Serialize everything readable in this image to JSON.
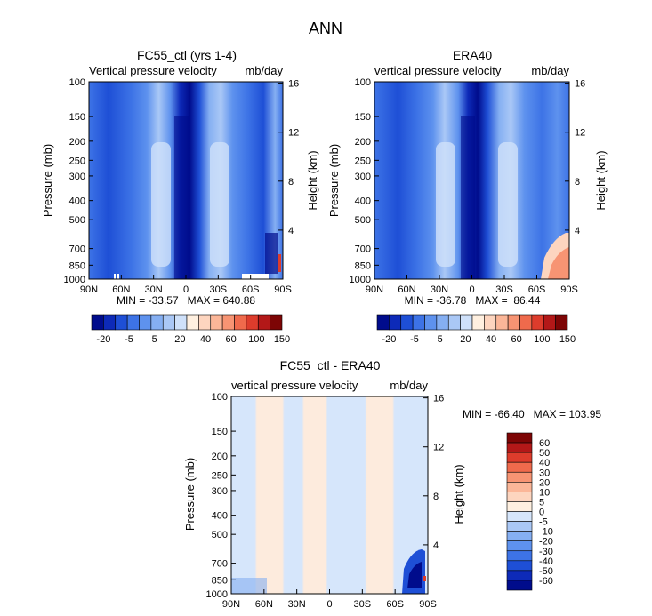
{
  "figure_title": "ANN",
  "chart_data": [
    {
      "type": "heatmap",
      "title": "FC55_ctl (yrs 1-4)",
      "subtitle_left": "Vertical pressure velocity",
      "subtitle_right": "mb/day",
      "ylabel": "Pressure (mb)",
      "y2label": "Height (km)",
      "x_ticks": [
        "90N",
        "60N",
        "30N",
        "0",
        "30S",
        "60S",
        "90S"
      ],
      "y_ticks": [
        "100",
        "150",
        "200",
        "250",
        "300",
        "400",
        "500",
        "700",
        "850",
        "1000"
      ],
      "y2_ticks": [
        "16",
        "12",
        "8",
        "4"
      ],
      "stats": "MIN = -33.57   MAX = 640.88",
      "colorbar_labels": [
        "-20",
        "-5",
        "5",
        "20",
        "40",
        "60",
        "100",
        "150"
      ],
      "colorbar_colors": [
        "#000c8c",
        "#0d2ab8",
        "#1e4fd6",
        "#3d73e6",
        "#5e92ee",
        "#85aff2",
        "#aac8f6",
        "#cfe1fa",
        "#fff0e0",
        "#fdd5bf",
        "#fbb698",
        "#f79473",
        "#ef6a4c",
        "#dd3c2c",
        "#b31818",
        "#7d0505"
      ]
    },
    {
      "type": "heatmap",
      "title": "ERA40",
      "subtitle_left": "vertical pressure velocity",
      "subtitle_right": "mb/day",
      "ylabel": "Pressure (mb)",
      "y2label": "Height (km)",
      "x_ticks": [
        "90N",
        "60N",
        "30N",
        "0",
        "30S",
        "60S",
        "90S"
      ],
      "y_ticks": [
        "100",
        "150",
        "200",
        "250",
        "300",
        "400",
        "500",
        "700",
        "850",
        "1000"
      ],
      "y2_ticks": [
        "16",
        "12",
        "8",
        "4"
      ],
      "stats": "MIN = -36.78   MAX =  86.44",
      "colorbar_labels": [
        "-20",
        "-5",
        "5",
        "20",
        "40",
        "60",
        "100",
        "150"
      ],
      "colorbar_colors": [
        "#000c8c",
        "#0d2ab8",
        "#1e4fd6",
        "#3d73e6",
        "#5e92ee",
        "#85aff2",
        "#aac8f6",
        "#cfe1fa",
        "#fff0e0",
        "#fdd5bf",
        "#fbb698",
        "#f79473",
        "#ef6a4c",
        "#dd3c2c",
        "#b31818",
        "#7d0505"
      ]
    },
    {
      "type": "heatmap",
      "title": "FC55_ctl - ERA40",
      "subtitle_left": "vertical pressure velocity",
      "subtitle_right": "mb/day",
      "ylabel": "Pressure (mb)",
      "y2label": "Height (km)",
      "x_ticks": [
        "90N",
        "60N",
        "30N",
        "0",
        "30S",
        "60S",
        "90S"
      ],
      "y_ticks": [
        "100",
        "150",
        "200",
        "250",
        "300",
        "400",
        "500",
        "700",
        "850",
        "1000"
      ],
      "y2_ticks": [
        "16",
        "12",
        "8",
        "4"
      ],
      "stats": "MIN = -66.40   MAX = 103.95",
      "colorbar_labels": [
        "60",
        "50",
        "40",
        "30",
        "20",
        "10",
        "5",
        "0",
        "-5",
        "-10",
        "-20",
        "-30",
        "-40",
        "-50",
        "-60"
      ],
      "colorbar_colors": [
        "#7d0505",
        "#b31818",
        "#dd3c2c",
        "#ef6a4c",
        "#f79473",
        "#fbb698",
        "#fdd5bf",
        "#fff0e0",
        "#d6e6fb",
        "#aac8f6",
        "#85aff2",
        "#5e92ee",
        "#3d73e6",
        "#1e4fd6",
        "#0d2ab8",
        "#000c8c"
      ]
    }
  ]
}
